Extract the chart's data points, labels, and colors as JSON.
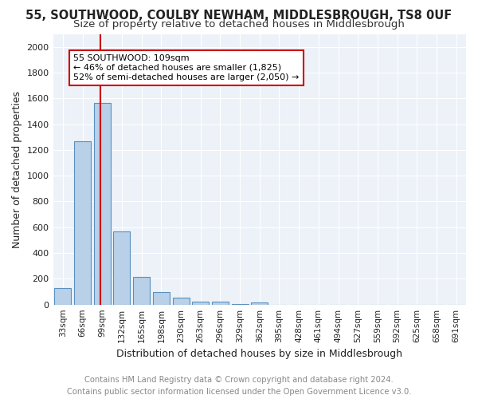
{
  "title": "55, SOUTHWOOD, COULBY NEWHAM, MIDDLESBROUGH, TS8 0UF",
  "subtitle": "Size of property relative to detached houses in Middlesbrough",
  "xlabel": "Distribution of detached houses by size in Middlesbrough",
  "ylabel": "Number of detached properties",
  "bins": [
    "33sqm",
    "66sqm",
    "99sqm",
    "132sqm",
    "165sqm",
    "198sqm",
    "230sqm",
    "263sqm",
    "296sqm",
    "329sqm",
    "362sqm",
    "395sqm",
    "428sqm",
    "461sqm",
    "494sqm",
    "527sqm",
    "559sqm",
    "592sqm",
    "625sqm",
    "658sqm",
    "691sqm"
  ],
  "values": [
    130,
    1270,
    1565,
    565,
    215,
    100,
    55,
    25,
    20,
    5,
    15,
    0,
    0,
    0,
    0,
    0,
    0,
    0,
    0,
    0,
    0
  ],
  "bar_color": "#b8d0e8",
  "bar_edge_color": "#5a90c0",
  "annotation_text": "55 SOUTHWOOD: 109sqm\n← 46% of detached houses are smaller (1,825)\n52% of semi-detached houses are larger (2,050) →",
  "annotation_box_color": "#ffffff",
  "annotation_box_edge": "#cc0000",
  "red_line_bin_index": 2,
  "ylim": [
    0,
    2100
  ],
  "yticks": [
    0,
    200,
    400,
    600,
    800,
    1000,
    1200,
    1400,
    1600,
    1800,
    2000
  ],
  "background_color": "#edf2f9",
  "grid_color": "#ffffff",
  "footer_line1": "Contains HM Land Registry data © Crown copyright and database right 2024.",
  "footer_line2": "Contains public sector information licensed under the Open Government Licence v3.0.",
  "title_fontsize": 10.5,
  "subtitle_fontsize": 9.5,
  "ylabel_fontsize": 9,
  "xlabel_fontsize": 9,
  "footer_fontsize": 7.2,
  "annotation_fontsize": 8.0,
  "tick_fontsize": 7.5,
  "ytick_fontsize": 8.0
}
